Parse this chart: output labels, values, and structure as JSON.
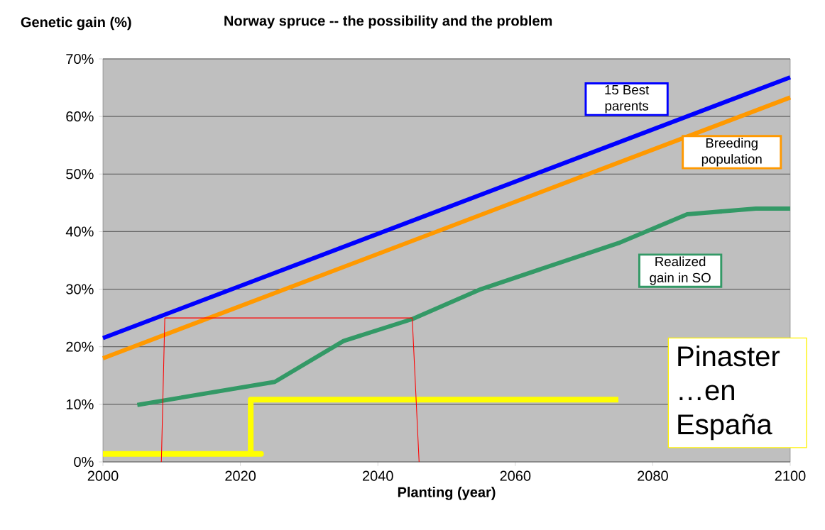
{
  "chart_data": {
    "type": "line",
    "title": "Norway spruce -- the possibility and the problem",
    "xlabel": "Planting (year)",
    "ylabel": "Genetic gain (%)",
    "xlim": [
      2000,
      2100
    ],
    "xticks": [
      2000,
      2020,
      2040,
      2060,
      2080,
      2100
    ],
    "ylim": [
      0,
      70
    ],
    "yticks": [
      {
        "value": 0,
        "label": "0%"
      },
      {
        "value": 10,
        "label": "10%"
      },
      {
        "value": 20,
        "label": "20%"
      },
      {
        "value": 30,
        "label": "30%"
      },
      {
        "value": 40,
        "label": "40%"
      },
      {
        "value": 50,
        "label": "50%"
      },
      {
        "value": 60,
        "label": "60%"
      },
      {
        "value": 70,
        "label": "70%"
      }
    ],
    "grid": "y",
    "series": [
      {
        "name": "15 Best parents",
        "color": "#0000ff",
        "x": [
          2000,
          2100
        ],
        "values": [
          21.5,
          66.8
        ]
      },
      {
        "name": "Breeding population",
        "color": "#ff9900",
        "x": [
          2000,
          2100
        ],
        "values": [
          18,
          63.3
        ]
      },
      {
        "name": "Realized gain in SO",
        "color": "#339966",
        "x": [
          2005,
          2025,
          2035,
          2045,
          2055,
          2075,
          2085,
          2095,
          2100
        ],
        "values": [
          9.9,
          13.9,
          21,
          24.8,
          30,
          38,
          43,
          44,
          44
        ]
      },
      {
        "color": "#ffff00",
        "x": [
          2000,
          2023,
          2021.5,
          2021.5,
          2075
        ],
        "values": [
          1.4,
          1.4,
          1.4,
          10.8,
          10.8
        ]
      },
      {
        "color": "#ff0000",
        "x": [
          2008.5,
          2009,
          2045,
          2046
        ],
        "values": [
          0,
          25,
          25,
          0
        ]
      }
    ],
    "annotations": [
      "Pinaster …en España"
    ]
  }
}
